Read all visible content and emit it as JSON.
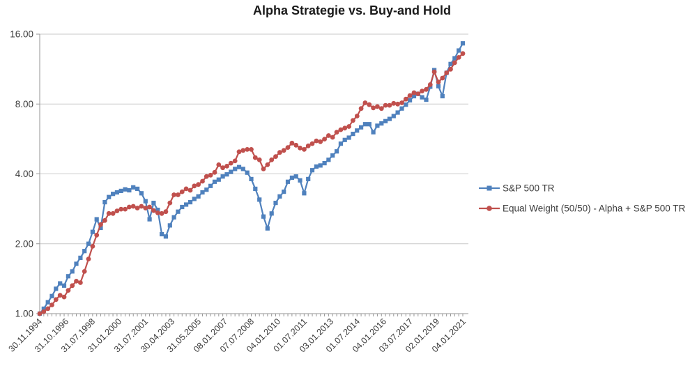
{
  "title": "Alpha Strategie vs. Buy-and Hold",
  "colors": {
    "sp500": "#4F81BD",
    "equal_weight": "#C0504D",
    "gridline": "#C9C9C9",
    "axis": "#969696",
    "label_text": "#3B3B3B",
    "background": "#FFFFFF"
  },
  "legend": {
    "position": "right-middle",
    "items": [
      {
        "id": "sp500",
        "label": "S&P 500 TR",
        "marker": "square",
        "color": "#4F81BD"
      },
      {
        "id": "equal_weight",
        "label": "Equal Weight (50/50) - Alpha + S&P 500 TR",
        "marker": "circle",
        "color": "#C0504D"
      }
    ]
  },
  "chart_data": {
    "type": "line",
    "title": "Alpha Strategie vs. Buy-and Hold",
    "xlabel": "",
    "ylabel": "",
    "y_scale": "log2",
    "ylim": [
      1,
      16
    ],
    "grid": "horizontal-only",
    "legend_position": "right-middle",
    "y_ticks": [
      {
        "value": 1,
        "label": "1.00"
      },
      {
        "value": 2,
        "label": "2.00"
      },
      {
        "value": 4,
        "label": "4.00"
      },
      {
        "value": 8,
        "label": "8.00"
      },
      {
        "value": 16,
        "label": "16.00"
      }
    ],
    "x_tick_labels": [
      "30.11.1994",
      "31.10.1996",
      "31.07.1998",
      "31.01.2000",
      "31.07.2001",
      "30.04.2003",
      "31.05.2005",
      "08.01.2007",
      "07.07.2008",
      "04.01.2010",
      "01.07.2011",
      "03.01.2013",
      "01.07.2014",
      "04.01.2016",
      "03.07.2017",
      "02.01.2019",
      "04.01.2021"
    ],
    "series": [
      {
        "id": "sp500",
        "name": "S&P 500 TR",
        "color": "#4F81BD",
        "marker": "square",
        "values": [
          1.0,
          1.05,
          1.12,
          1.19,
          1.28,
          1.35,
          1.32,
          1.45,
          1.52,
          1.64,
          1.74,
          1.86,
          2.0,
          2.25,
          2.55,
          2.34,
          3.02,
          3.18,
          3.28,
          3.33,
          3.38,
          3.43,
          3.4,
          3.5,
          3.45,
          3.3,
          3.05,
          2.55,
          3.0,
          2.8,
          2.2,
          2.15,
          2.4,
          2.6,
          2.75,
          2.88,
          2.95,
          3.02,
          3.12,
          3.2,
          3.33,
          3.42,
          3.55,
          3.7,
          3.78,
          3.9,
          3.98,
          4.08,
          4.2,
          4.28,
          4.2,
          4.05,
          3.8,
          3.45,
          3.1,
          2.62,
          2.33,
          2.7,
          3.0,
          3.2,
          3.35,
          3.7,
          3.85,
          3.9,
          3.75,
          3.3,
          3.8,
          4.15,
          4.3,
          4.35,
          4.45,
          4.6,
          4.8,
          5.0,
          5.4,
          5.6,
          5.73,
          5.95,
          6.15,
          6.35,
          6.55,
          6.55,
          6.05,
          6.45,
          6.6,
          6.75,
          6.9,
          7.1,
          7.35,
          7.65,
          7.95,
          8.3,
          8.65,
          8.85,
          8.55,
          8.35,
          9.5,
          11.2,
          9.55,
          8.65,
          10.9,
          11.9,
          12.6,
          13.6,
          14.6
        ]
      },
      {
        "id": "equal_weight",
        "name": "Equal Weight (50/50) - Alpha + S&P 500 TR",
        "color": "#C0504D",
        "marker": "circle",
        "values": [
          1.0,
          1.02,
          1.05,
          1.09,
          1.15,
          1.2,
          1.18,
          1.26,
          1.32,
          1.38,
          1.36,
          1.52,
          1.72,
          1.95,
          2.18,
          2.42,
          2.52,
          2.7,
          2.7,
          2.77,
          2.82,
          2.82,
          2.88,
          2.9,
          2.85,
          2.9,
          2.85,
          2.88,
          2.78,
          2.72,
          2.7,
          2.75,
          3.0,
          3.25,
          3.25,
          3.35,
          3.45,
          3.4,
          3.55,
          3.6,
          3.72,
          3.9,
          3.95,
          4.06,
          4.38,
          4.25,
          4.32,
          4.45,
          4.55,
          4.98,
          5.05,
          5.1,
          5.1,
          4.7,
          4.6,
          4.2,
          4.38,
          4.6,
          4.75,
          4.95,
          5.05,
          5.2,
          5.43,
          5.32,
          5.17,
          5.1,
          5.28,
          5.4,
          5.55,
          5.5,
          5.65,
          5.85,
          5.75,
          6.05,
          6.2,
          6.3,
          6.4,
          6.8,
          7.1,
          7.65,
          8.1,
          7.95,
          7.7,
          7.8,
          7.65,
          7.9,
          7.9,
          8.05,
          8.0,
          8.1,
          8.4,
          8.7,
          8.95,
          8.85,
          9.1,
          9.25,
          9.7,
          11.0,
          9.95,
          10.35,
          10.9,
          11.3,
          12.05,
          12.7,
          13.2
        ]
      }
    ]
  }
}
